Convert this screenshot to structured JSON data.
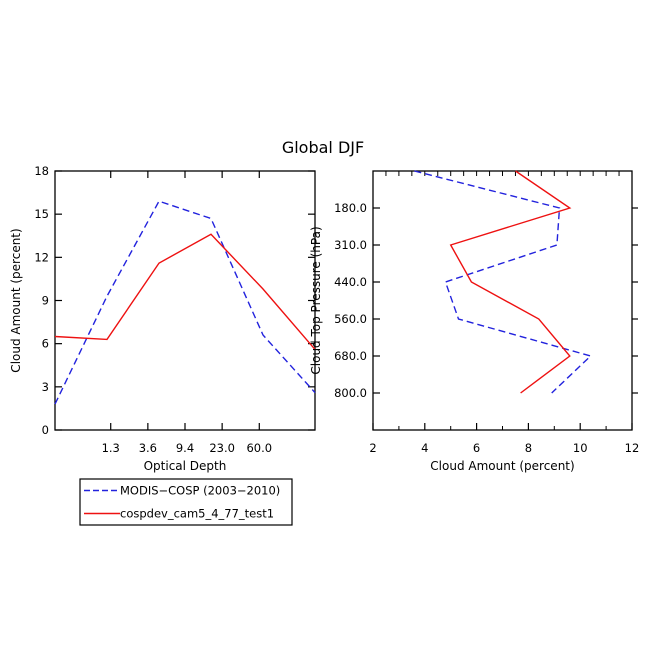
{
  "title": "Global DJF",
  "colors": {
    "modis": "#2222dd",
    "cospdev": "#ee1111",
    "axis": "#000000"
  },
  "legend": {
    "entries": [
      {
        "label": "MODIS−COSP (2003−2010)",
        "color": "#2222dd",
        "style": "dashed"
      },
      {
        "label": "cospdev_cam5_4_77_test1",
        "color": "#ee1111",
        "style": "solid"
      }
    ]
  },
  "chart_data": [
    {
      "type": "line",
      "xlabel": "Optical Depth",
      "ylabel": "Cloud Amount (percent)",
      "ylim": [
        0,
        18
      ],
      "yticks": [
        "0",
        "3",
        "6",
        "9",
        "12",
        "15",
        "18"
      ],
      "xlim": [
        0,
        7
      ],
      "xtick_positions": [
        1.5,
        2.5,
        3.5,
        4.5,
        5.5
      ],
      "xtick_labels": [
        "1.3",
        "3.6",
        "9.4",
        "23.0",
        "60.0"
      ],
      "series": [
        {
          "name": "MODIS−COSP (2003−2010)",
          "x": [
            0,
            1.4,
            2.8,
            4.2,
            5.6,
            7
          ],
          "y": [
            1.8,
            9.3,
            15.9,
            14.7,
            6.6,
            2.6
          ]
        },
        {
          "name": "cospdev_cam5_4_77_test1",
          "x": [
            0,
            1.4,
            2.8,
            4.2,
            5.6,
            7
          ],
          "y": [
            6.5,
            6.3,
            11.6,
            13.6,
            9.8,
            5.6
          ]
        }
      ]
    },
    {
      "type": "line",
      "xlabel": "Cloud Amount (percent)",
      "ylabel": "Cloud Top Pressure (hPa)",
      "xlim": [
        2,
        12
      ],
      "xticks": [
        "2",
        "4",
        "6",
        "8",
        "10",
        "12"
      ],
      "ylim": [
        0,
        7
      ],
      "ytick_positions": [
        1,
        2,
        3,
        4,
        5,
        6
      ],
      "ytick_labels": [
        "180.0",
        "310.0",
        "440.0",
        "560.0",
        "680.0",
        "800.0"
      ],
      "series": [
        {
          "name": "MODIS−COSP (2003−2010)",
          "x": [
            3.6,
            9.2,
            9.1,
            4.8,
            5.3,
            10.4,
            8.9
          ],
          "y": [
            0,
            1,
            2,
            3,
            4,
            5,
            6
          ]
        },
        {
          "name": "cospdev_cam5_4_77_test1",
          "x": [
            7.5,
            9.6,
            5.0,
            5.8,
            8.4,
            9.6,
            7.7
          ],
          "y": [
            0,
            1,
            2,
            3,
            4,
            5,
            6
          ]
        }
      ]
    }
  ]
}
